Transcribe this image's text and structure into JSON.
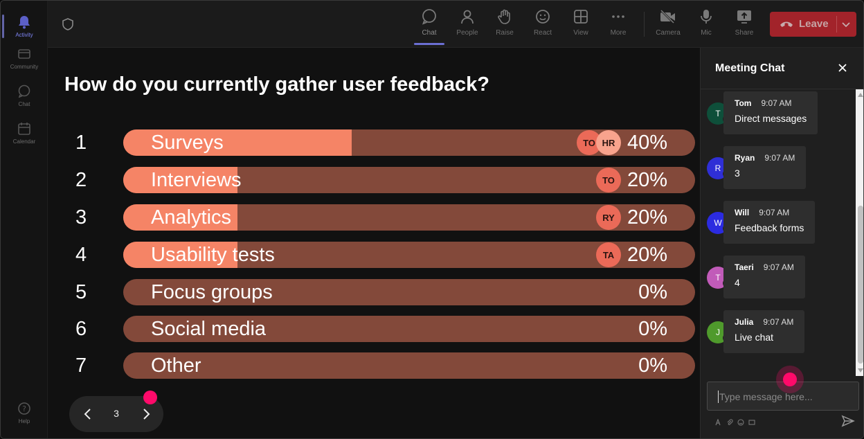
{
  "rail": {
    "items": [
      {
        "label": "Activity"
      },
      {
        "label": "Community"
      },
      {
        "label": "Chat"
      },
      {
        "label": "Calendar"
      },
      {
        "label": "Help"
      }
    ]
  },
  "toolbar": {
    "buttons": [
      {
        "label": "Chat"
      },
      {
        "label": "People"
      },
      {
        "label": "Raise"
      },
      {
        "label": "React"
      },
      {
        "label": "View"
      },
      {
        "label": "More"
      },
      {
        "label": "Camera"
      },
      {
        "label": "Mic"
      },
      {
        "label": "Share"
      }
    ],
    "leave_label": "Leave"
  },
  "poll": {
    "question": "How do you currently gather user feedback?",
    "options": [
      {
        "num": "1",
        "label": "Surveys",
        "pct": "40%",
        "fraction": 0.4,
        "voters": [
          "TO",
          "HR"
        ]
      },
      {
        "num": "2",
        "label": "Interviews",
        "pct": "20%",
        "fraction": 0.2,
        "voters": [
          "TO"
        ]
      },
      {
        "num": "3",
        "label": "Analytics",
        "pct": "20%",
        "fraction": 0.2,
        "voters": [
          "RY"
        ]
      },
      {
        "num": "4",
        "label": "Usability tests",
        "pct": "20%",
        "fraction": 0.2,
        "voters": [
          "TA"
        ]
      },
      {
        "num": "5",
        "label": "Focus groups",
        "pct": "0%",
        "fraction": 0,
        "voters": []
      },
      {
        "num": "6",
        "label": "Social media",
        "pct": "0%",
        "fraction": 0,
        "voters": []
      },
      {
        "num": "7",
        "label": "Other",
        "pct": "0%",
        "fraction": 0,
        "voters": []
      }
    ],
    "page": "3"
  },
  "chat": {
    "title": "Meeting Chat",
    "messages": [
      {
        "initial": "T",
        "name": "Tom",
        "time": "9:07 AM",
        "text": "Direct messages",
        "color": "#0e4f3a"
      },
      {
        "initial": "R",
        "name": "Ryan",
        "time": "9:07 AM",
        "text": "3",
        "color": "#2f2fd6"
      },
      {
        "initial": "W",
        "name": "Will",
        "time": "9:07 AM",
        "text": "Feedback forms",
        "color": "#2b2be0"
      },
      {
        "initial": "T",
        "name": "Taeri",
        "time": "9:07 AM",
        "text": "4",
        "color": "#c15bb9"
      },
      {
        "initial": "J",
        "name": "Julia",
        "time": "9:07 AM",
        "text": "Live chat",
        "color": "#4f9a2c"
      }
    ],
    "input_placeholder": "Type message here..."
  },
  "colors": {
    "bar_fill": "#f58466",
    "bar_track": "#83493a",
    "leave": "#c4262e",
    "accent": "#6264a7"
  }
}
